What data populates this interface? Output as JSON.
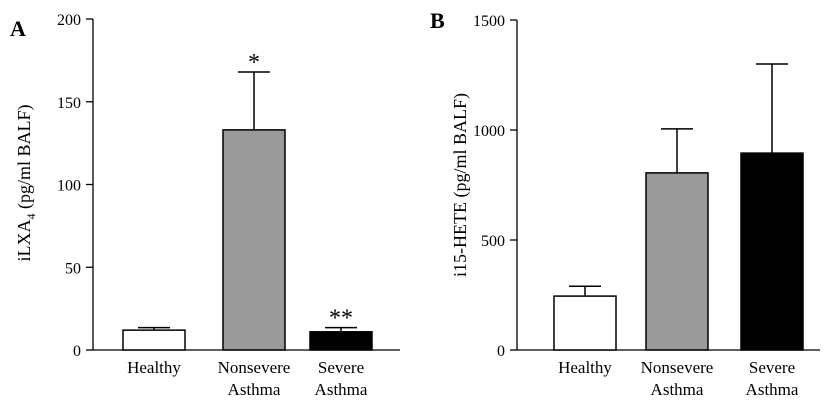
{
  "chart_data": [
    {
      "type": "bar",
      "panel": "A",
      "ylabel": "iLXA",
      "ylabel_sub": "4",
      "ylabel_suffix": " (pg/ml BALF)",
      "ylim": [
        0,
        200
      ],
      "yticks": [
        0,
        50,
        100,
        150,
        200
      ],
      "categories": [
        [
          "Healthy"
        ],
        [
          "Nonsevere",
          "Asthma"
        ],
        [
          "Severe",
          "Asthma"
        ]
      ],
      "values": [
        12,
        133,
        11
      ],
      "errors": [
        1.5,
        35,
        2.5
      ],
      "colors": [
        "#ffffff",
        "#9a9a9a",
        "#000000"
      ],
      "annotations": [
        "",
        "*",
        "**"
      ]
    },
    {
      "type": "bar",
      "panel": "B",
      "ylabel": "i15-HETE (pg/ml BALF)",
      "ylim": [
        0,
        1500
      ],
      "yticks": [
        0,
        500,
        1000,
        1500
      ],
      "categories": [
        [
          "Healthy"
        ],
        [
          "Nonsevere",
          "Asthma"
        ],
        [
          "Severe",
          "Asthma"
        ]
      ],
      "values": [
        245,
        805,
        895
      ],
      "errors": [
        45,
        200,
        405
      ],
      "colors": [
        "#ffffff",
        "#9a9a9a",
        "#000000"
      ],
      "annotations": [
        "",
        "",
        ""
      ]
    }
  ]
}
